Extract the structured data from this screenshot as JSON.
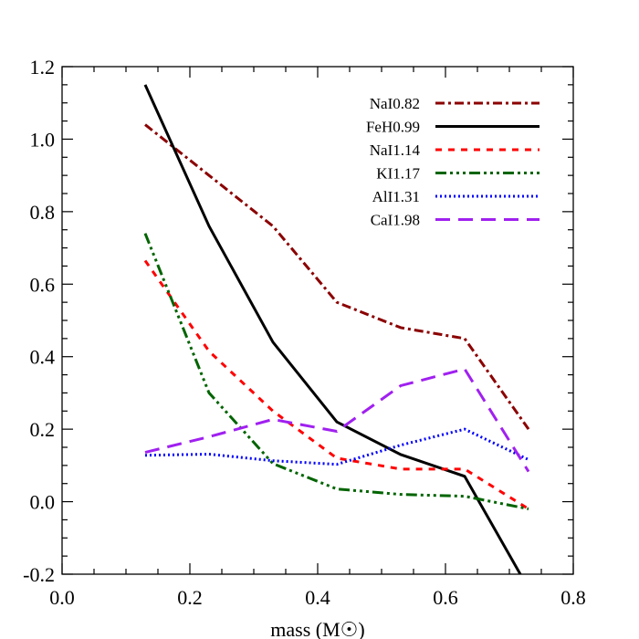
{
  "chart_data": {
    "type": "line",
    "title": "",
    "xlabel": "mass (M☉)",
    "ylabel": "",
    "xlim": [
      0.0,
      0.8
    ],
    "ylim": [
      -0.2,
      1.2
    ],
    "xticks": [
      "0.0",
      "0.2",
      "0.4",
      "0.6",
      "0.8"
    ],
    "yticks": [
      "-0.2",
      "0.0",
      "0.2",
      "0.4",
      "0.6",
      "0.8",
      "1.0",
      "1.2"
    ],
    "grid": false,
    "legend_position": "top-right",
    "x": [
      0.13,
      0.23,
      0.33,
      0.43,
      0.53,
      0.63,
      0.73
    ],
    "series": [
      {
        "name": "NaI0.82",
        "color": "#8b0000",
        "dash": "dashdot",
        "values": [
          1.04,
          0.9,
          0.76,
          0.55,
          0.48,
          0.45,
          0.2
        ]
      },
      {
        "name": "FeH0.99",
        "color": "#000000",
        "dash": "solid",
        "values": [
          1.15,
          0.76,
          0.44,
          0.22,
          0.13,
          0.07,
          -0.24
        ]
      },
      {
        "name": "NaI1.14",
        "color": "#ff0000",
        "dash": "dashed",
        "values": [
          0.665,
          0.415,
          0.25,
          0.12,
          0.09,
          0.09,
          -0.02
        ]
      },
      {
        "name": "KI1.17",
        "color": "#006400",
        "dash": "dashdotdotdot",
        "values": [
          0.74,
          0.3,
          0.105,
          0.035,
          0.02,
          0.015,
          -0.02
        ]
      },
      {
        "name": "AlI1.31",
        "color": "#0000ff",
        "dash": "dotted",
        "values": [
          0.128,
          0.131,
          0.113,
          0.103,
          0.156,
          0.2,
          0.116
        ]
      },
      {
        "name": "CaI1.98",
        "color": "#a020f0",
        "dash": "longdash",
        "values": [
          0.136,
          0.179,
          0.227,
          0.194,
          0.32,
          0.366,
          0.083
        ]
      }
    ]
  }
}
